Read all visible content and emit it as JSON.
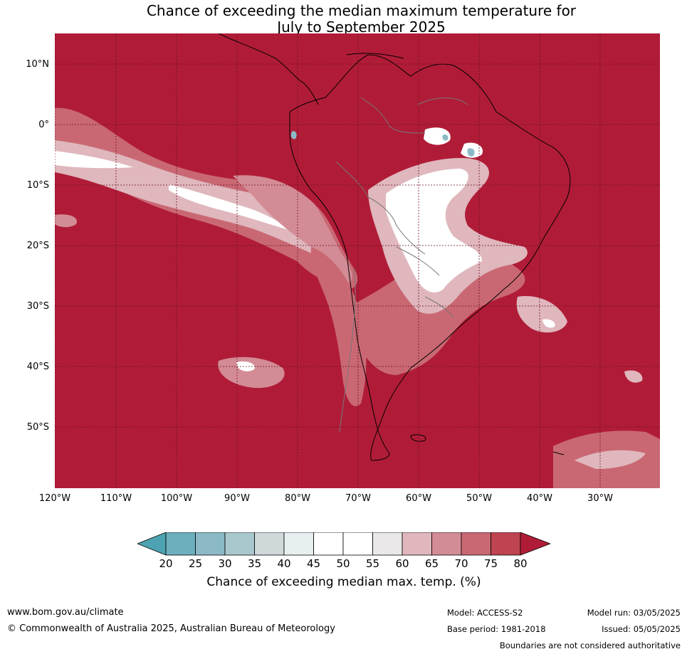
{
  "title": {
    "line1": "Chance of exceeding the median maximum temperature for",
    "line2": "July to September 2025"
  },
  "map": {
    "background_color": "#b01c37",
    "lat_labels": [
      "10°N",
      "0°",
      "10°S",
      "20°S",
      "30°S",
      "40°S",
      "50°S"
    ],
    "lon_labels": [
      "120°W",
      "110°W",
      "100°W",
      "90°W",
      "80°W",
      "70°W",
      "60°W",
      "50°W",
      "40°W",
      "30°W"
    ]
  },
  "colorbar": {
    "ticks": [
      "20",
      "25",
      "30",
      "35",
      "40",
      "45",
      "50",
      "55",
      "60",
      "65",
      "70",
      "75",
      "80"
    ],
    "colors": [
      "#4da3b1",
      "#6cafbd",
      "#8bbac6",
      "#a9c8ce",
      "#cfd9da",
      "#e8eff1",
      "#ffffff",
      "#ffffff",
      "#eae8e9",
      "#dfb7bd",
      "#d38c96",
      "#c96873",
      "#bd4450",
      "#b01c37"
    ],
    "label": "Chance of exceeding median max. temp. (%)"
  },
  "footer": {
    "url": "www.bom.gov.au/climate",
    "copyright": "© Commonwealth of Australia 2025, Australian Bureau of Meteorology",
    "model": "Model: ACCESS-S2",
    "base_period": "Base period: 1981-2018",
    "model_run": "Model run: 03/05/2025",
    "issued": "Issued: 05/05/2025",
    "disclaimer": "Boundaries are not considered authoritative"
  }
}
